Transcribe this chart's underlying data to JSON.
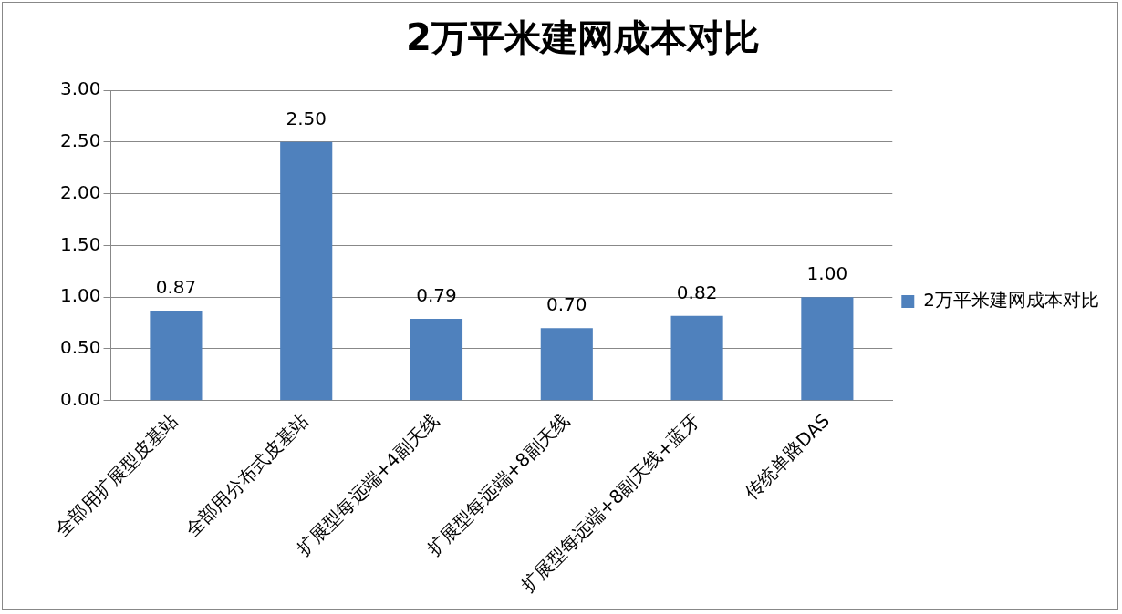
{
  "chart_data": {
    "type": "bar",
    "title": "2万平米建网成本对比",
    "categories": [
      "全部用扩展型皮基站",
      "全部用分布式皮基站",
      "扩展型每远端+4副天线",
      "扩展型每远端+8副天线",
      "扩展型每远端+8副天线+蓝牙",
      "传统单路DAS"
    ],
    "series": [
      {
        "name": "2万平米建网成本对比",
        "color": "#4f81bd",
        "values": [
          0.87,
          2.5,
          0.79,
          0.7,
          0.82,
          1.0
        ],
        "value_labels": [
          "0.87",
          "2.50",
          "0.79",
          "0.70",
          "0.82",
          "1.00"
        ]
      }
    ],
    "ylim": [
      0,
      3
    ],
    "yticks": [
      {
        "value": 0,
        "label": "0.00"
      },
      {
        "value": 0.5,
        "label": "0.50"
      },
      {
        "value": 1,
        "label": "1.00"
      },
      {
        "value": 1.5,
        "label": "1.50"
      },
      {
        "value": 2,
        "label": "2.00"
      },
      {
        "value": 2.5,
        "label": "2.50"
      },
      {
        "value": 3,
        "label": "3.00"
      }
    ],
    "grid": "y",
    "legend": "right"
  }
}
